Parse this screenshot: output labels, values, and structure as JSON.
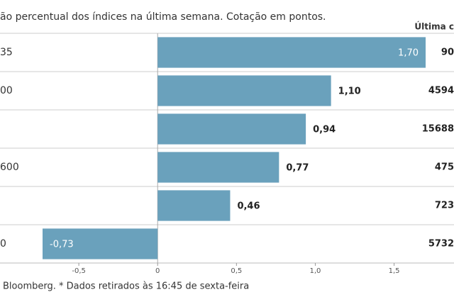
{
  "chart_data": {
    "type": "hbar",
    "subtitle": "ão percentual dos índices na última semana. Cotação em pontos.",
    "column_header": "Última c",
    "categories": [
      "35",
      "00",
      null,
      "600",
      null,
      "0"
    ],
    "values": [
      1.7,
      1.1,
      0.94,
      0.77,
      0.46,
      -0.73
    ],
    "value_labels": [
      "1,70",
      "1,10",
      "0,94",
      "0,77",
      "0,46",
      "-0,73"
    ],
    "last_quote": [
      "90",
      "4594",
      "15688",
      "475",
      "723",
      "5732"
    ],
    "color": "#6aa1bc",
    "xlim": [
      -1,
      1.88
    ],
    "xticks": [
      {
        "value": -0.5,
        "label": "-0,5"
      },
      0,
      {
        "value": 0.5,
        "label": "0,5"
      },
      {
        "value": 1,
        "label": "1,0"
      },
      {
        "value": 1.5,
        "label": "1,5"
      }
    ],
    "source": "Bloomberg.  * Dados retirados às 16:45 de sexta-feira"
  }
}
